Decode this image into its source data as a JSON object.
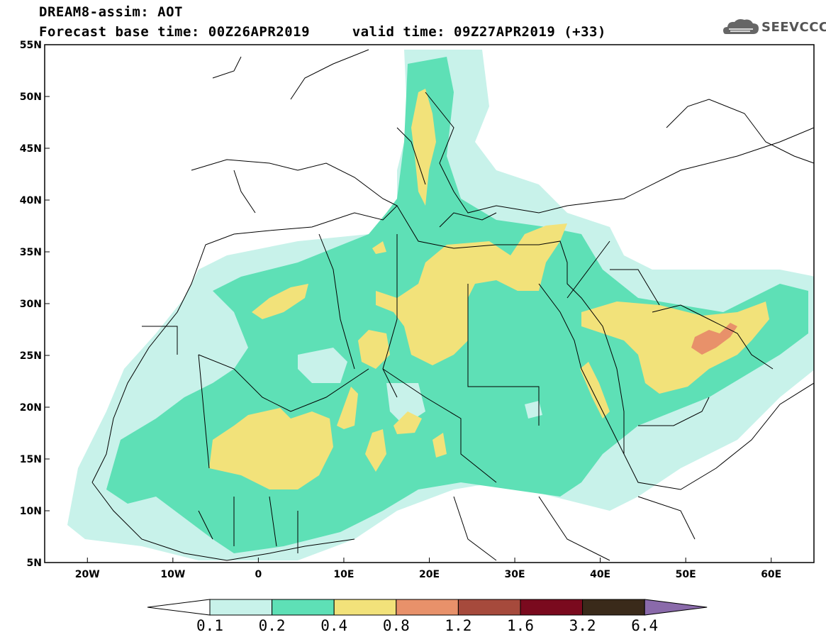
{
  "header": {
    "line1": "DREAM8-assim: AOT",
    "line2": "Forecast base time: 00Z26APR2019     valid time: 09Z27APR2019 (+33)"
  },
  "logo": {
    "text": "SEEVCCC",
    "icon": "cloud-icon"
  },
  "map": {
    "x_ticks": [
      "20W",
      "10W",
      "0",
      "10E",
      "20E",
      "30E",
      "40E",
      "50E",
      "60E"
    ],
    "y_ticks": [
      "55N",
      "50N",
      "45N",
      "40N",
      "35N",
      "30N",
      "25N",
      "20N",
      "15N",
      "10N",
      "5N"
    ],
    "lon_range": [
      -25,
      65
    ],
    "lat_range": [
      5,
      55
    ]
  },
  "legend": {
    "levels": [
      "0.1",
      "0.2",
      "0.4",
      "0.8",
      "1.2",
      "1.6",
      "3.2",
      "6.4"
    ],
    "colors": [
      "#c8f2ea",
      "#5ee0b6",
      "#f2e27a",
      "#e8916a",
      "#a64a3c",
      "#7a0a1e",
      "#3a2a1a",
      "#8a6aaa"
    ],
    "under_color": "#ffffff"
  }
}
